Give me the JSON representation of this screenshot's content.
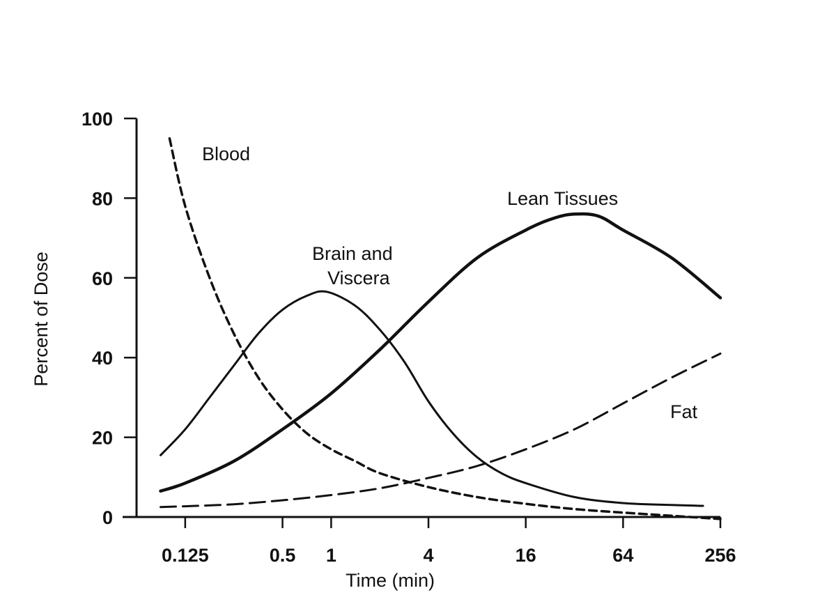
{
  "chart_data": {
    "type": "line",
    "title": "",
    "xlabel": "Time (min)",
    "ylabel": "Percent of Dose",
    "x_scale": "log2",
    "xlim": [
      0.0625,
      256
    ],
    "ylim": [
      0,
      100
    ],
    "x_ticks": [
      {
        "value": 0.125,
        "label": "0.125"
      },
      {
        "value": 0.5,
        "label": "0.5"
      },
      {
        "value": 1,
        "label": "1"
      },
      {
        "value": 4,
        "label": "4"
      },
      {
        "value": 16,
        "label": "16"
      },
      {
        "value": 64,
        "label": "64"
      },
      {
        "value": 256,
        "label": "256"
      }
    ],
    "y_ticks": [
      0,
      20,
      40,
      60,
      80,
      100
    ],
    "grid": false,
    "legend": "none (series labeled directly on curves)",
    "series": [
      {
        "name": "Blood",
        "style": "dashed",
        "color": "#111111",
        "points": [
          [
            0.1,
            95
          ],
          [
            0.125,
            78
          ],
          [
            0.177,
            60
          ],
          [
            0.25,
            46
          ],
          [
            0.354,
            35
          ],
          [
            0.5,
            27
          ],
          [
            0.707,
            21
          ],
          [
            1,
            17
          ],
          [
            1.41,
            14
          ],
          [
            2,
            11
          ],
          [
            4,
            7.5
          ],
          [
            8,
            5
          ],
          [
            16,
            3.3
          ],
          [
            32,
            2
          ],
          [
            64,
            1.1
          ],
          [
            128,
            0.3
          ],
          [
            256,
            -0.5
          ]
        ]
      },
      {
        "name": "Brain and Viscera",
        "style": "solid",
        "color": "#111111",
        "points": [
          [
            0.088,
            15.5
          ],
          [
            0.125,
            22
          ],
          [
            0.177,
            30
          ],
          [
            0.25,
            38
          ],
          [
            0.354,
            46
          ],
          [
            0.5,
            52
          ],
          [
            0.707,
            55.5
          ],
          [
            0.94,
            56.5
          ],
          [
            1.41,
            53
          ],
          [
            2,
            47
          ],
          [
            2.83,
            39
          ],
          [
            4,
            29
          ],
          [
            5.66,
            21
          ],
          [
            8,
            15
          ],
          [
            11.3,
            11
          ],
          [
            16,
            8.5
          ],
          [
            32,
            5
          ],
          [
            64,
            3.5
          ],
          [
            128,
            3
          ],
          [
            200,
            2.8
          ]
        ]
      },
      {
        "name": "Lean Tissues",
        "style": "solid",
        "color": "#111111",
        "points": [
          [
            0.088,
            6.5
          ],
          [
            0.125,
            8.5
          ],
          [
            0.25,
            14
          ],
          [
            0.5,
            22
          ],
          [
            1,
            31
          ],
          [
            2,
            42
          ],
          [
            4,
            54
          ],
          [
            8,
            65
          ],
          [
            16,
            72
          ],
          [
            24,
            75
          ],
          [
            32,
            76
          ],
          [
            45,
            75.5
          ],
          [
            64,
            72
          ],
          [
            128,
            65
          ],
          [
            256,
            55
          ]
        ]
      },
      {
        "name": "Fat",
        "style": "dashed",
        "color": "#111111",
        "points": [
          [
            0.088,
            2.5
          ],
          [
            0.125,
            2.7
          ],
          [
            0.25,
            3.2
          ],
          [
            0.5,
            4.2
          ],
          [
            1,
            5.5
          ],
          [
            2,
            7.2
          ],
          [
            4,
            9.8
          ],
          [
            8,
            12.8
          ],
          [
            16,
            17
          ],
          [
            32,
            22
          ],
          [
            64,
            28.5
          ],
          [
            128,
            35
          ],
          [
            256,
            41
          ]
        ]
      }
    ],
    "annotations": [
      {
        "text": "Blood",
        "series": "Blood"
      },
      {
        "text": "Brain and",
        "series": "Brain and Viscera"
      },
      {
        "text": "Viscera",
        "series": "Brain and Viscera"
      },
      {
        "text": "Lean Tissues",
        "series": "Lean Tissues"
      },
      {
        "text": "Fat",
        "series": "Fat"
      }
    ]
  }
}
